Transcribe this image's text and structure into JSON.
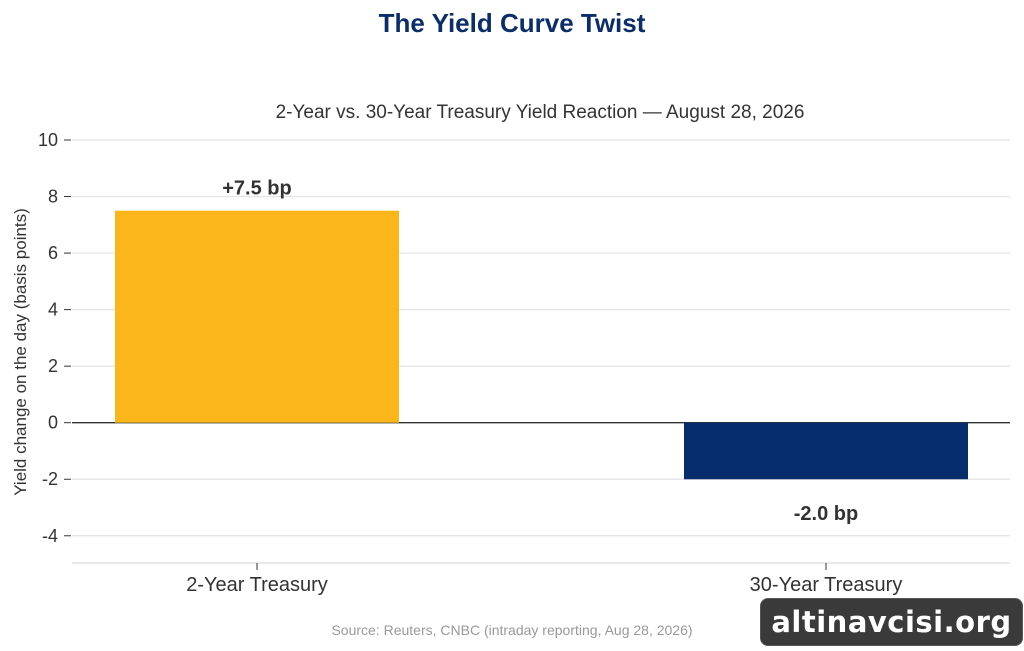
{
  "chart_data": {
    "type": "bar",
    "title": "The Yield Curve Twist",
    "subtitle": "2-Year vs. 30-Year Treasury Yield Reaction — August 28, 2026",
    "xlabel": "",
    "ylabel": "Yield change on the day (basis points)",
    "categories": [
      "2-Year Treasury",
      "30-Year Treasury"
    ],
    "values": [
      7.5,
      -2.0
    ],
    "data_labels": [
      "+7.5 bp",
      "-2.0 bp"
    ],
    "bar_colors": [
      "#FBB71A",
      "#052C6B"
    ],
    "ylim": [
      -5,
      10
    ],
    "yticks": [
      10,
      8,
      6,
      4,
      2,
      0,
      -2,
      -4
    ],
    "grid": true,
    "legend": "none",
    "source": "Source: Reuters, CNBC (intraday reporting, Aug 28, 2026)"
  },
  "colors": {
    "title": "#0B2E6B",
    "grid": "#e3e3e3",
    "zero_line": "#333333"
  },
  "watermark": "altinavcisi.org"
}
